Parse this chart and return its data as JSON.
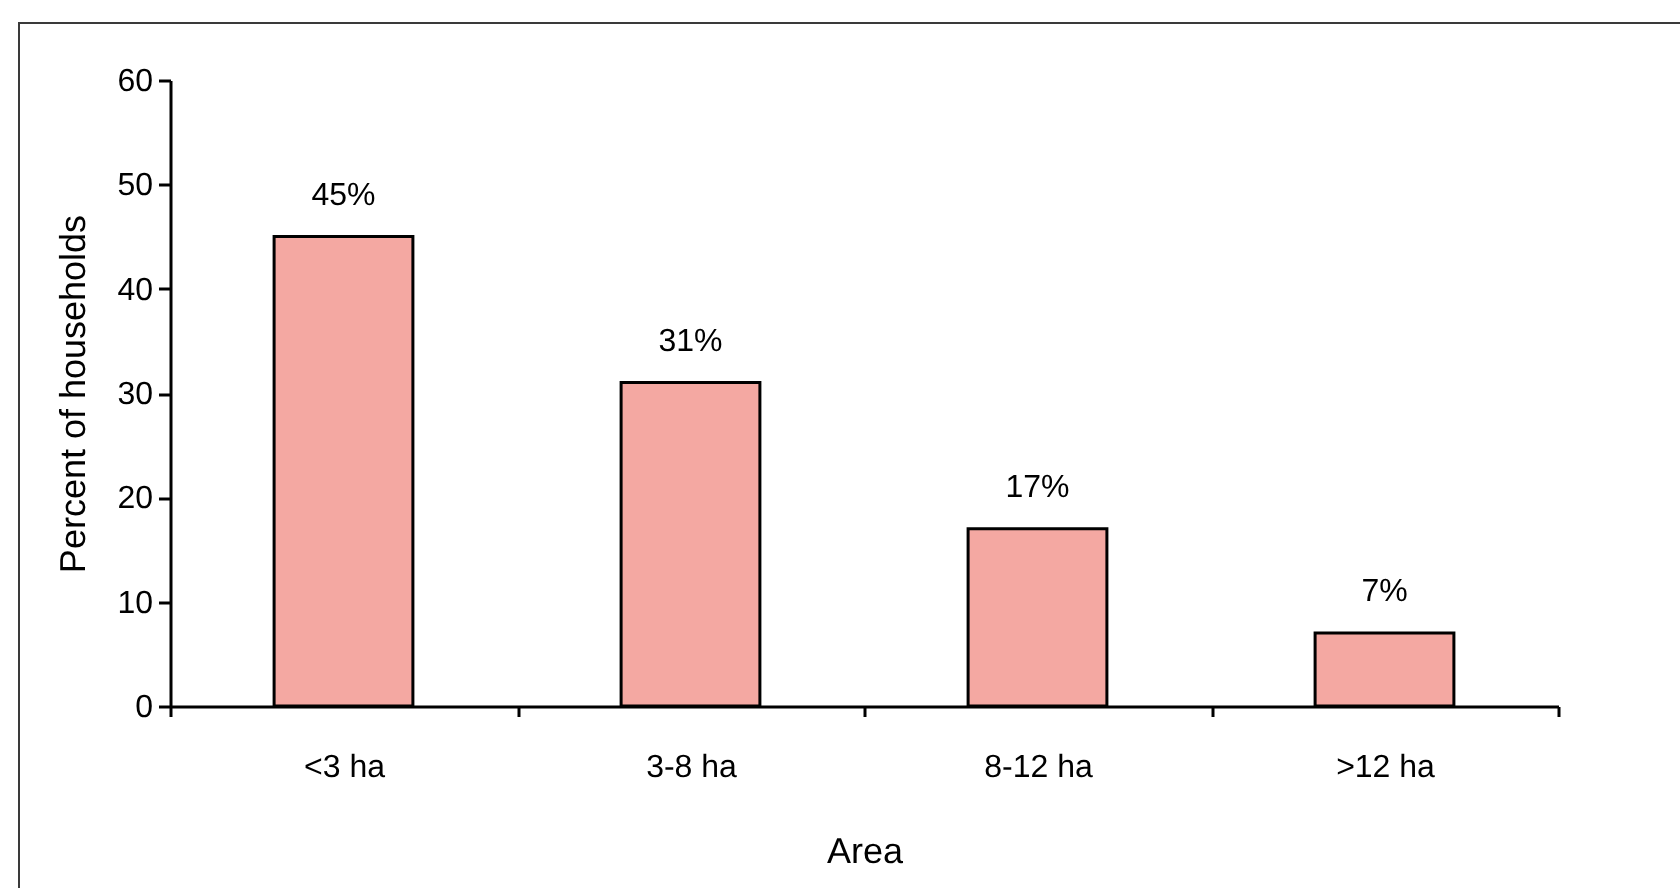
{
  "chart_data": {
    "type": "bar",
    "xlabel": "Area",
    "ylabel": "Percent of households",
    "categories": [
      "<3 ha",
      "3-8 ha",
      "8-12 ha",
      ">12 ha"
    ],
    "values": [
      45,
      31,
      17,
      7
    ],
    "value_labels": [
      "45%",
      "31%",
      "17%",
      "7%"
    ],
    "color": "#f4a8a2",
    "ylim": [
      0,
      60
    ],
    "yticks": [
      0,
      10,
      20,
      30,
      40,
      50,
      60
    ]
  }
}
